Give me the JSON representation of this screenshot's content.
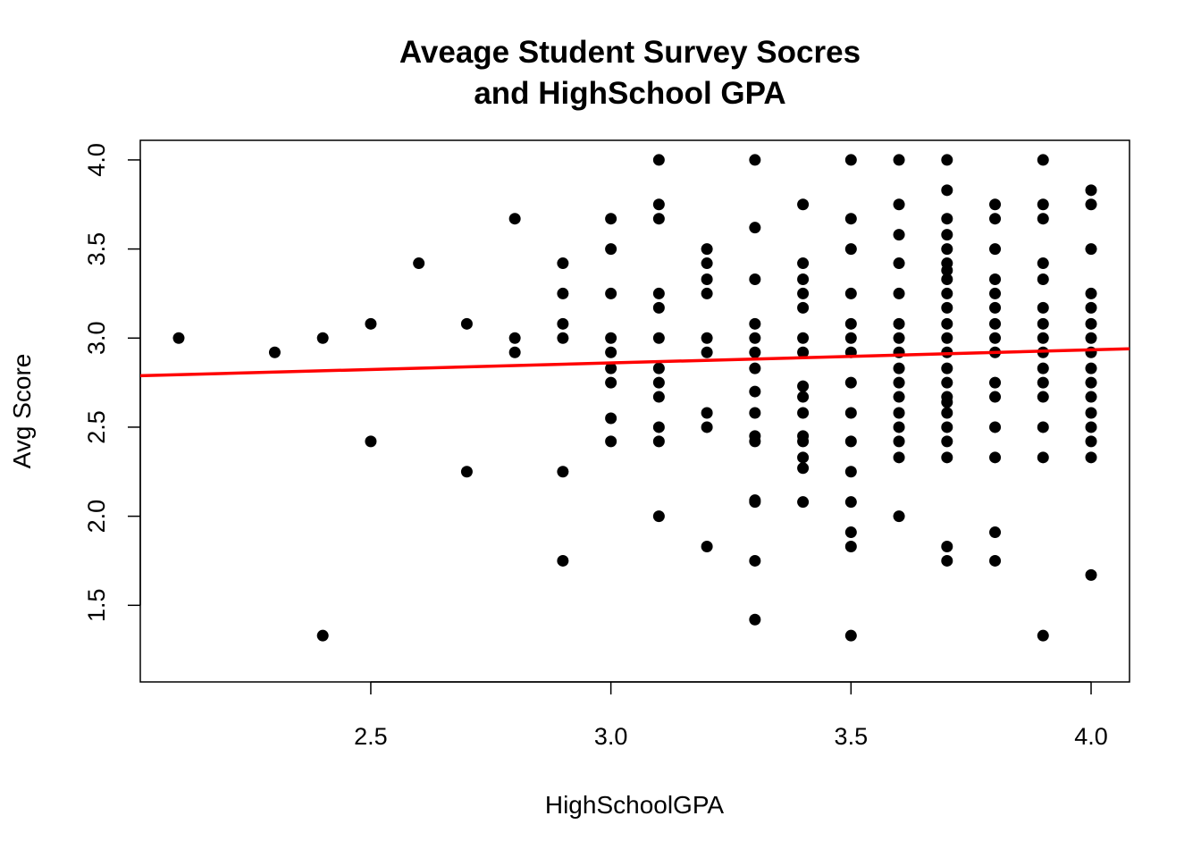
{
  "chart_data": {
    "type": "scatter",
    "title": [
      "Aveage Student Survey Socres",
      "and HighSchool GPA"
    ],
    "xlabel": "HighSchoolGPA",
    "ylabel": "Avg Score",
    "xlim": [
      2.02,
      4.08
    ],
    "ylim": [
      1.07,
      4.11
    ],
    "xticks": [
      2.5,
      3.0,
      3.5,
      4.0
    ],
    "yticks": [
      1.5,
      2.0,
      2.5,
      3.0,
      3.5,
      4.0
    ],
    "xtick_labels": [
      "2.5",
      "3.0",
      "3.5",
      "4.0"
    ],
    "ytick_labels": [
      "1.5",
      "2.0",
      "2.5",
      "3.0",
      "3.5",
      "4.0"
    ],
    "grid": false,
    "point_color": "#000000",
    "regression_line": {
      "intercept": 2.64,
      "slope": 0.0735,
      "color": "#ff0000"
    },
    "points": [
      [
        2.1,
        3.0
      ],
      [
        2.3,
        2.92
      ],
      [
        2.4,
        3.0
      ],
      [
        2.4,
        1.33
      ],
      [
        2.5,
        3.08
      ],
      [
        2.5,
        2.42
      ],
      [
        2.6,
        3.42
      ],
      [
        2.7,
        3.08
      ],
      [
        2.7,
        2.25
      ],
      [
        2.8,
        3.67
      ],
      [
        2.8,
        3.0
      ],
      [
        2.8,
        2.92
      ],
      [
        2.9,
        3.42
      ],
      [
        2.9,
        3.25
      ],
      [
        2.9,
        3.08
      ],
      [
        2.9,
        3.0
      ],
      [
        2.9,
        2.25
      ],
      [
        2.9,
        1.75
      ],
      [
        3.0,
        3.67
      ],
      [
        3.0,
        3.5
      ],
      [
        3.0,
        3.25
      ],
      [
        3.0,
        3.0
      ],
      [
        3.0,
        2.92
      ],
      [
        3.0,
        2.83
      ],
      [
        3.0,
        2.75
      ],
      [
        3.0,
        2.55
      ],
      [
        3.0,
        2.42
      ],
      [
        3.1,
        4.0
      ],
      [
        3.1,
        3.75
      ],
      [
        3.1,
        3.67
      ],
      [
        3.1,
        3.25
      ],
      [
        3.1,
        3.17
      ],
      [
        3.1,
        3.0
      ],
      [
        3.1,
        2.83
      ],
      [
        3.1,
        2.75
      ],
      [
        3.1,
        2.67
      ],
      [
        3.1,
        2.5
      ],
      [
        3.1,
        2.42
      ],
      [
        3.1,
        2.0
      ],
      [
        3.2,
        3.5
      ],
      [
        3.2,
        3.42
      ],
      [
        3.2,
        3.33
      ],
      [
        3.2,
        3.25
      ],
      [
        3.2,
        3.0
      ],
      [
        3.2,
        2.92
      ],
      [
        3.2,
        2.58
      ],
      [
        3.2,
        2.5
      ],
      [
        3.2,
        1.83
      ],
      [
        3.3,
        4.0
      ],
      [
        3.3,
        3.62
      ],
      [
        3.3,
        3.33
      ],
      [
        3.3,
        3.08
      ],
      [
        3.3,
        3.0
      ],
      [
        3.3,
        2.92
      ],
      [
        3.3,
        2.83
      ],
      [
        3.3,
        2.7
      ],
      [
        3.3,
        2.58
      ],
      [
        3.3,
        2.45
      ],
      [
        3.3,
        2.42
      ],
      [
        3.3,
        2.09
      ],
      [
        3.3,
        2.08
      ],
      [
        3.3,
        1.75
      ],
      [
        3.3,
        1.42
      ],
      [
        3.4,
        3.75
      ],
      [
        3.4,
        3.42
      ],
      [
        3.4,
        3.33
      ],
      [
        3.4,
        3.25
      ],
      [
        3.4,
        3.17
      ],
      [
        3.4,
        3.0
      ],
      [
        3.4,
        2.92
      ],
      [
        3.4,
        2.73
      ],
      [
        3.4,
        2.67
      ],
      [
        3.4,
        2.58
      ],
      [
        3.4,
        2.45
      ],
      [
        3.4,
        2.42
      ],
      [
        3.4,
        2.33
      ],
      [
        3.4,
        2.27
      ],
      [
        3.4,
        2.08
      ],
      [
        3.5,
        4.0
      ],
      [
        3.5,
        3.67
      ],
      [
        3.5,
        3.5
      ],
      [
        3.5,
        3.25
      ],
      [
        3.5,
        3.08
      ],
      [
        3.5,
        3.0
      ],
      [
        3.5,
        2.92
      ],
      [
        3.5,
        2.75
      ],
      [
        3.5,
        2.58
      ],
      [
        3.5,
        2.42
      ],
      [
        3.5,
        2.25
      ],
      [
        3.5,
        2.08
      ],
      [
        3.5,
        1.91
      ],
      [
        3.5,
        1.83
      ],
      [
        3.5,
        1.33
      ],
      [
        3.6,
        4.0
      ],
      [
        3.6,
        3.75
      ],
      [
        3.6,
        3.58
      ],
      [
        3.6,
        3.42
      ],
      [
        3.6,
        3.25
      ],
      [
        3.6,
        3.08
      ],
      [
        3.6,
        3.0
      ],
      [
        3.6,
        2.92
      ],
      [
        3.6,
        2.83
      ],
      [
        3.6,
        2.75
      ],
      [
        3.6,
        2.67
      ],
      [
        3.6,
        2.58
      ],
      [
        3.6,
        2.5
      ],
      [
        3.6,
        2.42
      ],
      [
        3.6,
        2.33
      ],
      [
        3.6,
        2.0
      ],
      [
        3.7,
        4.0
      ],
      [
        3.7,
        3.83
      ],
      [
        3.7,
        3.67
      ],
      [
        3.7,
        3.58
      ],
      [
        3.7,
        3.5
      ],
      [
        3.7,
        3.42
      ],
      [
        3.7,
        3.38
      ],
      [
        3.7,
        3.33
      ],
      [
        3.7,
        3.25
      ],
      [
        3.7,
        3.17
      ],
      [
        3.7,
        3.08
      ],
      [
        3.7,
        3.0
      ],
      [
        3.7,
        2.92
      ],
      [
        3.7,
        2.83
      ],
      [
        3.7,
        2.75
      ],
      [
        3.7,
        2.67
      ],
      [
        3.7,
        2.64
      ],
      [
        3.7,
        2.58
      ],
      [
        3.7,
        2.5
      ],
      [
        3.7,
        2.42
      ],
      [
        3.7,
        2.33
      ],
      [
        3.7,
        1.83
      ],
      [
        3.7,
        1.75
      ],
      [
        3.8,
        3.75
      ],
      [
        3.8,
        3.67
      ],
      [
        3.8,
        3.5
      ],
      [
        3.8,
        3.33
      ],
      [
        3.8,
        3.25
      ],
      [
        3.8,
        3.17
      ],
      [
        3.8,
        3.08
      ],
      [
        3.8,
        3.0
      ],
      [
        3.8,
        2.92
      ],
      [
        3.8,
        2.75
      ],
      [
        3.8,
        2.67
      ],
      [
        3.8,
        2.5
      ],
      [
        3.8,
        2.33
      ],
      [
        3.8,
        1.91
      ],
      [
        3.8,
        1.75
      ],
      [
        3.9,
        4.0
      ],
      [
        3.9,
        3.75
      ],
      [
        3.9,
        3.67
      ],
      [
        3.9,
        3.42
      ],
      [
        3.9,
        3.33
      ],
      [
        3.9,
        3.17
      ],
      [
        3.9,
        3.08
      ],
      [
        3.9,
        3.0
      ],
      [
        3.9,
        2.92
      ],
      [
        3.9,
        2.83
      ],
      [
        3.9,
        2.75
      ],
      [
        3.9,
        2.67
      ],
      [
        3.9,
        2.5
      ],
      [
        3.9,
        2.33
      ],
      [
        3.9,
        1.33
      ],
      [
        4.0,
        3.83
      ],
      [
        4.0,
        3.75
      ],
      [
        4.0,
        3.5
      ],
      [
        4.0,
        3.25
      ],
      [
        4.0,
        3.17
      ],
      [
        4.0,
        3.08
      ],
      [
        4.0,
        3.0
      ],
      [
        4.0,
        2.92
      ],
      [
        4.0,
        2.83
      ],
      [
        4.0,
        2.75
      ],
      [
        4.0,
        2.67
      ],
      [
        4.0,
        2.58
      ],
      [
        4.0,
        2.5
      ],
      [
        4.0,
        2.42
      ],
      [
        4.0,
        2.33
      ],
      [
        4.0,
        1.67
      ]
    ]
  }
}
